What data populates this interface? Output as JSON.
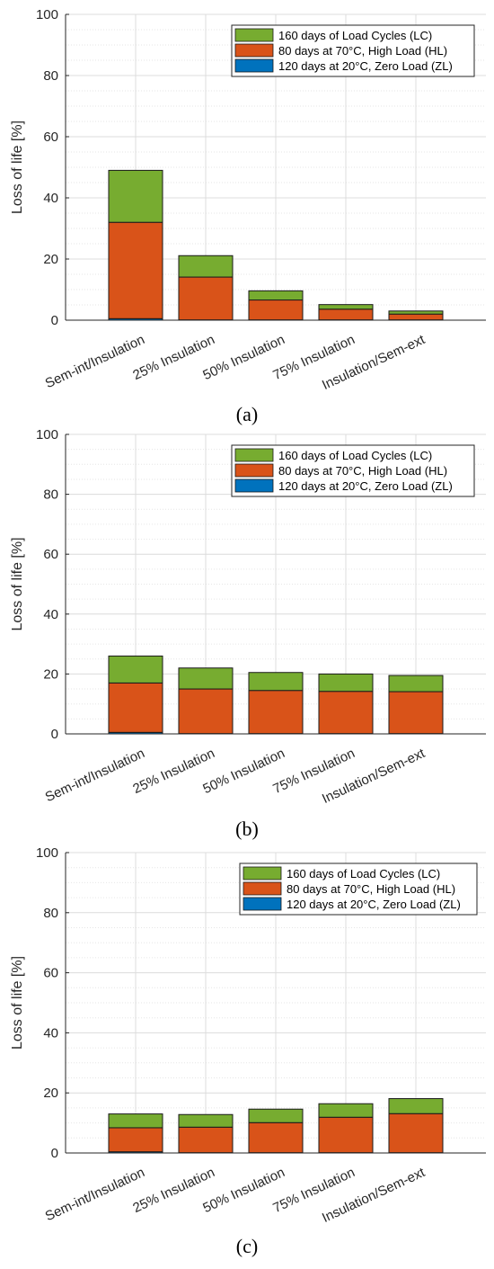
{
  "chart_data": [
    {
      "type": "bar",
      "caption": "(a)",
      "ylabel": "Loss of life [%]",
      "ylim": [
        0,
        100
      ],
      "yticks": [
        0,
        20,
        40,
        60,
        80,
        100
      ],
      "categories": [
        "Sem-int/Insulation",
        "25% Insulation",
        "50% Insulation",
        "75% Insulation",
        "Insulation/Sem-ext"
      ],
      "stacked": true,
      "grid": true,
      "legend_position": "top-right",
      "series": [
        {
          "name": "120 days at 20°C, Zero Load (ZL)",
          "color": "#0072BD",
          "values": [
            0.5,
            0.1,
            0.1,
            0.1,
            0.1
          ]
        },
        {
          "name": "80 days at 70°C, High Load (HL)",
          "color": "#D95319",
          "values": [
            31.5,
            14.0,
            6.5,
            3.5,
            1.9
          ]
        },
        {
          "name": "160 days of Load Cycles (LC)",
          "color": "#77AC30",
          "values": [
            17.0,
            7.0,
            3.0,
            1.5,
            1.0
          ]
        }
      ]
    },
    {
      "type": "bar",
      "caption": "(b)",
      "ylabel": "Loss of life [%]",
      "ylim": [
        0,
        100
      ],
      "yticks": [
        0,
        20,
        40,
        60,
        80,
        100
      ],
      "categories": [
        "Sem-int/Insulation",
        "25% Insulation",
        "50% Insulation",
        "75% Insulation",
        "Insulation/Sem-ext"
      ],
      "stacked": true,
      "grid": true,
      "legend_position": "top-right",
      "series": [
        {
          "name": "120 days at 20°C, Zero Load (ZL)",
          "color": "#0072BD",
          "values": [
            0.5,
            0.1,
            0.1,
            0.1,
            0.1
          ]
        },
        {
          "name": "80 days at 70°C, High Load (HL)",
          "color": "#D95319",
          "values": [
            16.5,
            14.9,
            14.4,
            14.1,
            14.0
          ]
        },
        {
          "name": "160 days of Load Cycles (LC)",
          "color": "#77AC30",
          "values": [
            9.0,
            7.0,
            6.0,
            5.8,
            5.4
          ]
        }
      ]
    },
    {
      "type": "bar",
      "caption": "(c)",
      "ylabel": "Loss of life [%]",
      "ylim": [
        0,
        100
      ],
      "yticks": [
        0,
        20,
        40,
        60,
        80,
        100
      ],
      "categories": [
        "Sem-int/Insulation",
        "25% Insulation",
        "50% Insulation",
        "75% Insulation",
        "Insulation/Sem-ext"
      ],
      "stacked": true,
      "grid": true,
      "legend_position": "top-right",
      "series": [
        {
          "name": "120 days at 20°C, Zero Load (ZL)",
          "color": "#0072BD",
          "values": [
            0.4,
            0.1,
            0.1,
            0.1,
            0.1
          ]
        },
        {
          "name": "80 days at 70°C, High Load (HL)",
          "color": "#D95319",
          "values": [
            8.0,
            8.5,
            10.0,
            11.8,
            13.0
          ]
        },
        {
          "name": "160 days of Load Cycles (LC)",
          "color": "#77AC30",
          "values": [
            4.6,
            4.2,
            4.5,
            4.5,
            5.0
          ]
        }
      ]
    }
  ]
}
